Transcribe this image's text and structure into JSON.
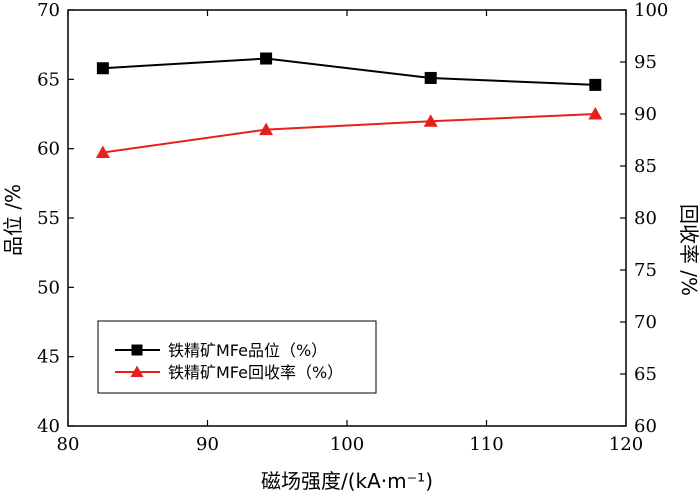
{
  "chart_data": {
    "type": "line",
    "xlabel": "磁场强度/(kA·m⁻¹)",
    "ylabel_left": "品位 /%",
    "ylabel_right": "回收率 /%",
    "xlim": [
      80,
      120
    ],
    "ylim_left": [
      40,
      70
    ],
    "ylim_right": [
      60,
      100
    ],
    "x_ticks": [
      80,
      90,
      100,
      110,
      120
    ],
    "y_left_ticks": [
      40,
      45,
      50,
      55,
      60,
      65,
      70
    ],
    "y_right_ticks": [
      60,
      65,
      70,
      75,
      80,
      85,
      90,
      95,
      100
    ],
    "grid": false,
    "legend_position": "bottom-left",
    "series": [
      {
        "name": "铁精矿MFe品位（%）",
        "axis": "left",
        "color": "#000000",
        "marker": "square",
        "x": [
          82.5,
          94.2,
          106.0,
          117.8
        ],
        "values": [
          65.8,
          66.5,
          65.1,
          64.6
        ]
      },
      {
        "name": "铁精矿MFe回收率（%）",
        "axis": "right",
        "color": "#e8201c",
        "marker": "triangle",
        "x": [
          82.5,
          94.2,
          106.0,
          117.8
        ],
        "values": [
          86.3,
          88.5,
          89.3,
          90.0
        ]
      }
    ]
  }
}
